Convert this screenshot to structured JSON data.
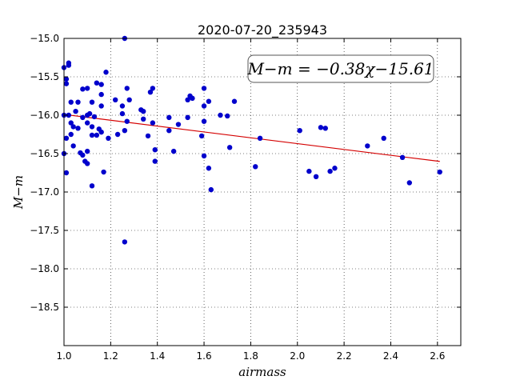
{
  "chart_data": {
    "type": "scatter",
    "title": "2020-07-20_235943",
    "xlabel": "airmass",
    "ylabel": "M−m",
    "xlim": [
      1.0,
      2.7
    ],
    "ylim": [
      -19.0,
      -15.0
    ],
    "y_inverted": true,
    "grid": true,
    "x_ticks": [
      1.0,
      1.2,
      1.4,
      1.6,
      1.8,
      2.0,
      2.2,
      2.4,
      2.6
    ],
    "x_tick_labels": [
      "1.0",
      "1.2",
      "1.4",
      "1.6",
      "1.8",
      "2.0",
      "2.2",
      "2.4",
      "2.6"
    ],
    "y_ticks": [
      -15.0,
      -15.5,
      -16.0,
      -16.5,
      -17.0,
      -17.5,
      -18.0,
      -18.5
    ],
    "y_tick_labels": [
      "−15.0",
      "−15.5",
      "−16.0",
      "−16.5",
      "−17.0",
      "−17.5",
      "−18.0",
      "−18.5"
    ],
    "annotation": "M−m = −0.38χ−15.61",
    "fit": {
      "slope": -0.38,
      "intercept": -15.61,
      "x_range": [
        1.0,
        2.61
      ],
      "color": "#d40000"
    },
    "marker_color": "#0000cc",
    "points": [
      [
        1.0,
        -15.38
      ],
      [
        1.01,
        -15.53
      ],
      [
        1.01,
        -15.59
      ],
      [
        1.02,
        -15.35
      ],
      [
        1.02,
        -15.32
      ],
      [
        1.0,
        -16.0
      ],
      [
        1.0,
        -16.5
      ],
      [
        1.01,
        -16.3
      ],
      [
        1.01,
        -16.75
      ],
      [
        1.02,
        -16.0
      ],
      [
        1.03,
        -15.83
      ],
      [
        1.03,
        -16.1
      ],
      [
        1.03,
        -16.25
      ],
      [
        1.04,
        -16.15
      ],
      [
        1.04,
        -16.4
      ],
      [
        1.05,
        -15.95
      ],
      [
        1.06,
        -15.83
      ],
      [
        1.06,
        -16.17
      ],
      [
        1.07,
        -16.49
      ],
      [
        1.08,
        -15.66
      ],
      [
        1.08,
        -16.03
      ],
      [
        1.08,
        -16.52
      ],
      [
        1.09,
        -16.6
      ],
      [
        1.1,
        -15.65
      ],
      [
        1.1,
        -16.0
      ],
      [
        1.1,
        -16.1
      ],
      [
        1.1,
        -16.47
      ],
      [
        1.1,
        -16.63
      ],
      [
        1.11,
        -15.98
      ],
      [
        1.12,
        -15.83
      ],
      [
        1.12,
        -16.15
      ],
      [
        1.12,
        -16.26
      ],
      [
        1.12,
        -16.92
      ],
      [
        1.13,
        -16.02
      ],
      [
        1.14,
        -15.58
      ],
      [
        1.14,
        -16.26
      ],
      [
        1.15,
        -16.18
      ],
      [
        1.16,
        -15.6
      ],
      [
        1.16,
        -15.73
      ],
      [
        1.16,
        -15.88
      ],
      [
        1.16,
        -16.22
      ],
      [
        1.17,
        -16.74
      ],
      [
        1.18,
        -15.44
      ],
      [
        1.19,
        -16.3
      ],
      [
        1.22,
        -15.8
      ],
      [
        1.23,
        -16.25
      ],
      [
        1.25,
        -15.88
      ],
      [
        1.25,
        -15.98
      ],
      [
        1.26,
        -16.2
      ],
      [
        1.26,
        -17.65
      ],
      [
        1.27,
        -15.65
      ],
      [
        1.27,
        -16.08
      ],
      [
        1.28,
        -15.8
      ],
      [
        1.26,
        -15.0
      ],
      [
        1.33,
        -15.93
      ],
      [
        1.34,
        -15.95
      ],
      [
        1.34,
        -16.05
      ],
      [
        1.36,
        -16.27
      ],
      [
        1.37,
        -15.7
      ],
      [
        1.38,
        -16.1
      ],
      [
        1.38,
        -15.65
      ],
      [
        1.39,
        -16.45
      ],
      [
        1.39,
        -16.6
      ],
      [
        1.45,
        -16.03
      ],
      [
        1.45,
        -16.2
      ],
      [
        1.47,
        -16.47
      ],
      [
        1.49,
        -16.12
      ],
      [
        1.53,
        -15.8
      ],
      [
        1.53,
        -16.03
      ],
      [
        1.54,
        -15.75
      ],
      [
        1.55,
        -15.78
      ],
      [
        1.59,
        -16.27
      ],
      [
        1.6,
        -15.65
      ],
      [
        1.6,
        -15.88
      ],
      [
        1.6,
        -16.08
      ],
      [
        1.6,
        -16.53
      ],
      [
        1.62,
        -15.82
      ],
      [
        1.62,
        -16.69
      ],
      [
        1.63,
        -16.97
      ],
      [
        1.67,
        -16.0
      ],
      [
        1.7,
        -16.01
      ],
      [
        1.71,
        -16.42
      ],
      [
        1.73,
        -15.82
      ],
      [
        1.82,
        -16.67
      ],
      [
        1.84,
        -16.3
      ],
      [
        2.01,
        -16.2
      ],
      [
        2.05,
        -16.73
      ],
      [
        2.08,
        -16.8
      ],
      [
        2.1,
        -16.16
      ],
      [
        2.12,
        -16.17
      ],
      [
        2.14,
        -16.73
      ],
      [
        2.16,
        -16.69
      ],
      [
        2.3,
        -16.4
      ],
      [
        2.37,
        -16.3
      ],
      [
        2.45,
        -16.55
      ],
      [
        2.48,
        -16.88
      ],
      [
        2.61,
        -16.74
      ]
    ]
  }
}
